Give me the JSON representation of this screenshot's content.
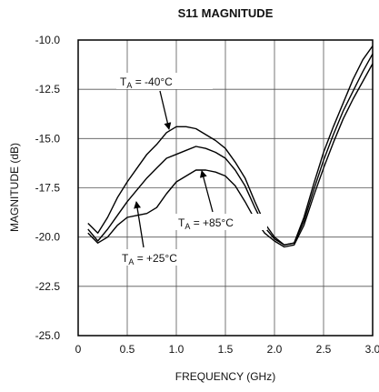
{
  "chart_data": {
    "type": "line",
    "title": "S11 MAGNITUDE",
    "x_label": "FREQUENCY (GHz)",
    "y_label": "MAGNITUDE (dB)",
    "x": [
      0.1,
      0.2,
      0.3,
      0.4,
      0.5,
      0.6,
      0.7,
      0.8,
      0.9,
      1.0,
      1.1,
      1.2,
      1.3,
      1.4,
      1.5,
      1.6,
      1.7,
      1.8,
      1.9,
      2.0,
      2.1,
      2.2,
      2.3,
      2.4,
      2.5,
      2.6,
      2.7,
      2.8,
      2.9,
      3.0
    ],
    "series": [
      {
        "color": "#000000",
        "values": [
          -19.3,
          -19.8,
          -19.0,
          -18.0,
          -17.2,
          -16.5,
          -15.8,
          -15.3,
          -14.7,
          -14.4,
          -14.4,
          -14.5,
          -14.8,
          -15.1,
          -15.5,
          -16.2,
          -17.0,
          -18.2,
          -19.3,
          -20.0,
          -20.4,
          -20.3,
          -19.0,
          -17.3,
          -15.7,
          -14.4,
          -13.2,
          -12.0,
          -11.0,
          -10.3
        ]
      },
      {
        "color": "#000000",
        "values": [
          -19.6,
          -20.2,
          -19.6,
          -18.9,
          -18.2,
          -17.6,
          -17.0,
          -16.5,
          -16.0,
          -15.8,
          -15.6,
          -15.4,
          -15.5,
          -15.7,
          -16.0,
          -16.6,
          -17.4,
          -18.5,
          -19.5,
          -20.1,
          -20.4,
          -20.3,
          -19.2,
          -17.6,
          -16.1,
          -14.8,
          -13.6,
          -12.6,
          -11.6,
          -10.7
        ]
      },
      {
        "color": "#000000",
        "values": [
          -19.8,
          -20.3,
          -20.0,
          -19.4,
          -19.0,
          -18.9,
          -18.8,
          -18.5,
          -17.8,
          -17.2,
          -16.9,
          -16.6,
          -16.6,
          -16.7,
          -16.9,
          -17.4,
          -18.2,
          -19.1,
          -19.8,
          -20.2,
          -20.5,
          -20.4,
          -19.4,
          -17.9,
          -16.5,
          -15.2,
          -14.0,
          -13.0,
          -12.1,
          -11.2
        ]
      }
    ],
    "annotations": [
      {
        "text": "T",
        "subscript": "A",
        "suffix": " = -40°C"
      },
      {
        "text": "T",
        "subscript": "A",
        "suffix": " = +25°C"
      },
      {
        "text": "T",
        "subscript": "A",
        "suffix": " = +85°C"
      }
    ],
    "xlim": [
      0,
      3
    ],
    "xticks": [
      0,
      0.5,
      {
        "value": 1,
        "label": "1.0"
      },
      1.5,
      {
        "value": 2,
        "label": "2.0"
      },
      2.5,
      {
        "value": 3,
        "label": "3.0"
      }
    ],
    "ylim": [
      -25,
      -10
    ],
    "yticks": [
      {
        "value": -25,
        "label": "-25.0"
      },
      -22.5,
      {
        "value": -20,
        "label": "-20.0"
      },
      -17.5,
      {
        "value": -15,
        "label": "-15.0"
      },
      -12.5,
      {
        "value": -10,
        "label": "-10.0"
      }
    ],
    "grid": true
  }
}
